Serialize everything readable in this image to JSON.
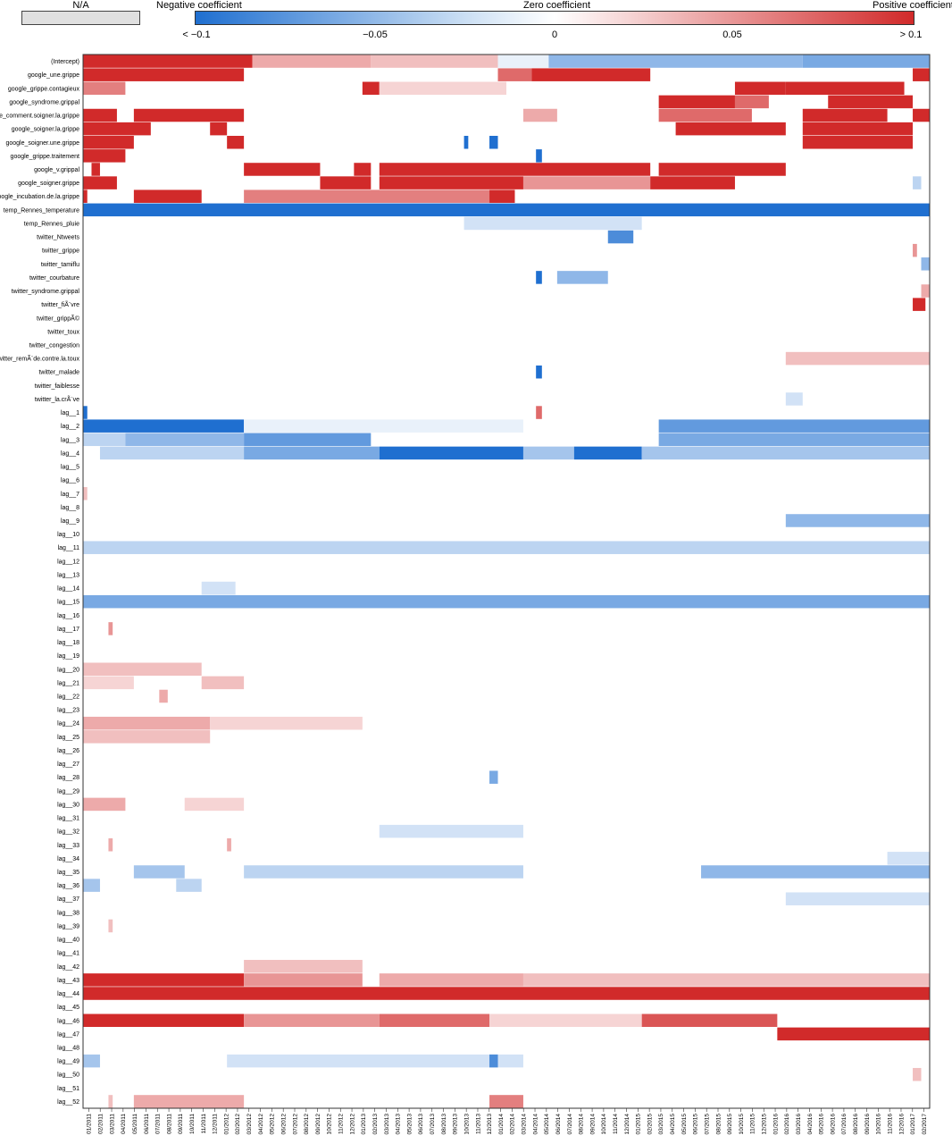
{
  "legend": {
    "na_label": "N/A",
    "negative_label": "Negative coefficient",
    "zero_label": "Zero coefficient",
    "positive_label": "Positive coefficient",
    "ticks": [
      "< −0.1",
      "−0.05",
      "0",
      "0.05",
      "> 0.1"
    ],
    "colors": {
      "negative": "#1f6fd0",
      "zero": "#ffffff",
      "positive": "#d12a2a",
      "na": "#e0e0e0"
    }
  },
  "chart_data": {
    "type": "heatmap",
    "value_range": [
      -0.1,
      0.1
    ],
    "rows": [
      "(Intercept)",
      "google_une.grippe",
      "google_grippe.contagieux",
      "google_syndrome.grippal",
      "google_comment.soigner.la.grippe",
      "google_soigner.la.grippe",
      "google_soigner.une.grippe",
      "google_grippe.traitement",
      "google_v.grippal",
      "google_soigner.grippe",
      "google_incubation.de.la.grippe",
      "temp_Rennes_temperature",
      "temp_Rennes_pluie",
      "twitter_Ntweets",
      "twitter_grippe",
      "twitter_tamiflu",
      "twitter_courbature",
      "twitter_syndrome.grippal",
      "twitter_fiÃ¨vre",
      "twitter_grippÃ©",
      "twitter_toux",
      "twitter_congestion",
      "twitter_remÃ¨de.contre.la.toux",
      "twitter_malade",
      "twitter_faiblesse",
      "twitter_la.crÃ¨ve",
      "lag__1",
      "lag__2",
      "lag__3",
      "lag__4",
      "lag__5",
      "lag__6",
      "lag__7",
      "lag__8",
      "lag__9",
      "lag__10",
      "lag__11",
      "lag__12",
      "lag__13",
      "lag__14",
      "lag__15",
      "lag__16",
      "lag__17",
      "lag__18",
      "lag__19",
      "lag__20",
      "lag__21",
      "lag__22",
      "lag__23",
      "lag__24",
      "lag__25",
      "lag__26",
      "lag__27",
      "lag__28",
      "lag__29",
      "lag__30",
      "lag__31",
      "lag__32",
      "lag__33",
      "lag__34",
      "lag__35",
      "lag__36",
      "lag__37",
      "lag__38",
      "lag__39",
      "lag__40",
      "lag__41",
      "lag__42",
      "lag__43",
      "lag__44",
      "lag__45",
      "lag__46",
      "lag__47",
      "lag__48",
      "lag__49",
      "lag__50",
      "lag__51",
      "lag__52"
    ],
    "x_tick_labels": [
      "01/2011",
      "02/2011",
      "03/2011",
      "04/2011",
      "05/2011",
      "06/2011",
      "07/2011",
      "08/2011",
      "09/2011",
      "10/2011",
      "11/2011",
      "12/2011",
      "01/2012",
      "02/2012",
      "03/2012",
      "04/2012",
      "05/2012",
      "06/2012",
      "07/2012",
      "08/2012",
      "09/2012",
      "10/2012",
      "11/2012",
      "12/2012",
      "01/2013",
      "02/2013",
      "03/2013",
      "04/2013",
      "05/2013",
      "06/2013",
      "07/2013",
      "08/2013",
      "09/2013",
      "10/2013",
      "11/2013",
      "12/2013",
      "01/2014",
      "02/2014",
      "03/2014",
      "04/2014",
      "05/2014",
      "06/2014",
      "07/2014",
      "08/2014",
      "09/2014",
      "10/2014",
      "11/2014",
      "12/2014",
      "01/2015",
      "02/2015",
      "03/2015",
      "04/2015",
      "05/2015",
      "06/2015",
      "07/2015",
      "08/2015",
      "09/2015",
      "10/2015",
      "11/2015",
      "12/2015",
      "01/2016",
      "02/2016",
      "03/2016",
      "04/2016",
      "05/2016",
      "06/2016",
      "07/2016",
      "08/2016",
      "09/2016",
      "10/2016",
      "11/2016",
      "12/2016",
      "01/2017",
      "02/2017"
    ],
    "cells": {
      "(Intercept)": [
        [
          0,
          0.2,
          0.1
        ],
        [
          0.2,
          0.34,
          0.04
        ],
        [
          0.34,
          0.49,
          0.03
        ],
        [
          0.49,
          0.55,
          -0.01
        ],
        [
          0.55,
          0.85,
          -0.05
        ],
        [
          0.85,
          1,
          -0.06
        ]
      ],
      "google_une.grippe": [
        [
          0,
          0.19,
          0.1
        ],
        [
          0.49,
          0.53,
          0.07
        ],
        [
          0.53,
          0.67,
          0.1
        ],
        [
          0.98,
          1,
          0.1
        ]
      ],
      "google_grippe.contagieux": [
        [
          0,
          0.05,
          0.06
        ],
        [
          0.33,
          0.35,
          0.1
        ],
        [
          0.35,
          0.5,
          0.02
        ],
        [
          0.77,
          0.83,
          0.1
        ],
        [
          0.83,
          0.97,
          0.1
        ]
      ],
      "google_syndrome.grippal": [
        [
          0.68,
          0.77,
          0.1
        ],
        [
          0.77,
          0.81,
          0.07
        ],
        [
          0.88,
          0.98,
          0.1
        ]
      ],
      "google_comment.soigner.la.grippe": [
        [
          0,
          0.04,
          0.1
        ],
        [
          0.06,
          0.19,
          0.1
        ],
        [
          0.52,
          0.56,
          0.04
        ],
        [
          0.68,
          0.79,
          0.07
        ],
        [
          0.85,
          0.95,
          0.1
        ],
        [
          0.98,
          1,
          0.1
        ]
      ],
      "google_soigner.la.grippe": [
        [
          0,
          0.08,
          0.1
        ],
        [
          0.15,
          0.17,
          0.1
        ],
        [
          0.7,
          0.83,
          0.1
        ],
        [
          0.85,
          0.98,
          0.1
        ]
      ],
      "google_soigner.une.grippe": [
        [
          0,
          0.06,
          0.1
        ],
        [
          0.17,
          0.19,
          0.1
        ],
        [
          0.45,
          0.455,
          -0.1
        ],
        [
          0.48,
          0.49,
          -0.1
        ],
        [
          0.85,
          0.98,
          0.1
        ]
      ],
      "google_grippe.traitement": [
        [
          0,
          0.05,
          0.1
        ],
        [
          0.535,
          0.542,
          -0.1
        ]
      ],
      "google_v.grippal": [
        [
          0.01,
          0.02,
          0.1
        ],
        [
          0.19,
          0.28,
          0.1
        ],
        [
          0.32,
          0.34,
          0.1
        ],
        [
          0.35,
          0.67,
          0.1
        ],
        [
          0.68,
          0.83,
          0.1
        ]
      ],
      "google_soigner.grippe": [
        [
          0,
          0.04,
          0.1
        ],
        [
          0.28,
          0.34,
          0.1
        ],
        [
          0.35,
          0.52,
          0.1
        ],
        [
          0.52,
          0.67,
          0.05
        ],
        [
          0.67,
          0.77,
          0.1
        ],
        [
          0.98,
          0.99,
          -0.03
        ]
      ],
      "google_incubation.de.la.grippe": [
        [
          0,
          0.005,
          0.1
        ],
        [
          0.06,
          0.14,
          0.1
        ],
        [
          0.19,
          0.48,
          0.06
        ],
        [
          0.48,
          0.51,
          0.1
        ]
      ],
      "temp_Rennes_temperature": [
        [
          0,
          1,
          -0.1
        ]
      ],
      "temp_Rennes_pluie": [
        [
          0.45,
          0.66,
          -0.02
        ]
      ],
      "twitter_Ntweets": [
        [
          0.62,
          0.65,
          -0.08
        ]
      ],
      "twitter_grippe": [
        [
          0.98,
          0.985,
          0.05
        ]
      ],
      "twitter_tamiflu": [
        [
          0.99,
          1,
          -0.05
        ]
      ],
      "twitter_courbature": [
        [
          0.535,
          0.542,
          -0.1
        ],
        [
          0.56,
          0.62,
          -0.05
        ]
      ],
      "twitter_syndrome.grippal": [
        [
          0.99,
          1,
          0.04
        ]
      ],
      "twitter_fiÃ¨vre": [
        [
          0.98,
          0.995,
          0.1
        ]
      ],
      "twitter_grippÃ©": [],
      "twitter_toux": [],
      "twitter_congestion": [],
      "twitter_remÃ¨de.contre.la.toux": [
        [
          0.83,
          1,
          0.03
        ]
      ],
      "twitter_malade": [
        [
          0.535,
          0.542,
          -0.1
        ]
      ],
      "twitter_faiblesse": [],
      "twitter_la.crÃ¨ve": [
        [
          0.83,
          0.85,
          -0.02
        ]
      ],
      "lag__1": [
        [
          0,
          0.005,
          -0.1
        ],
        [
          0.535,
          0.542,
          0.07
        ]
      ],
      "lag__2": [
        [
          0,
          0.19,
          -0.1
        ],
        [
          0.19,
          0.52,
          -0.01
        ],
        [
          0.68,
          1,
          -0.07
        ]
      ],
      "lag__3": [
        [
          0,
          0.05,
          -0.03
        ],
        [
          0.05,
          0.19,
          -0.05
        ],
        [
          0.19,
          0.34,
          -0.07
        ],
        [
          0.68,
          1,
          -0.06
        ]
      ],
      "lag__4": [
        [
          0.02,
          0.19,
          -0.03
        ],
        [
          0.19,
          0.35,
          -0.06
        ],
        [
          0.35,
          0.52,
          -0.1
        ],
        [
          0.52,
          0.58,
          -0.04
        ],
        [
          0.58,
          0.66,
          -0.1
        ],
        [
          0.66,
          1,
          -0.04
        ]
      ],
      "lag__5": [],
      "lag__6": [],
      "lag__7": [
        [
          0,
          0.005,
          0.03
        ]
      ],
      "lag__8": [],
      "lag__9": [
        [
          0.83,
          1,
          -0.05
        ]
      ],
      "lag__10": [],
      "lag__11": [
        [
          0,
          1,
          -0.03
        ]
      ],
      "lag__12": [],
      "lag__13": [],
      "lag__14": [
        [
          0.14,
          0.18,
          -0.02
        ]
      ],
      "lag__15": [
        [
          0,
          1,
          -0.06
        ]
      ],
      "lag__16": [],
      "lag__17": [
        [
          0.03,
          0.035,
          0.05
        ]
      ],
      "lag__18": [],
      "lag__19": [],
      "lag__20": [
        [
          0,
          0.14,
          0.03
        ]
      ],
      "lag__21": [
        [
          0,
          0.06,
          0.02
        ],
        [
          0.14,
          0.19,
          0.03
        ]
      ],
      "lag__22": [
        [
          0.09,
          0.1,
          0.04
        ]
      ],
      "lag__23": [],
      "lag__24": [
        [
          0,
          0.15,
          0.04
        ],
        [
          0.15,
          0.33,
          0.02
        ]
      ],
      "lag__25": [
        [
          0,
          0.15,
          0.03
        ]
      ],
      "lag__26": [],
      "lag__27": [],
      "lag__28": [
        [
          0.48,
          0.49,
          -0.06
        ]
      ],
      "lag__29": [],
      "lag__30": [
        [
          0,
          0.05,
          0.04
        ],
        [
          0.12,
          0.19,
          0.02
        ]
      ],
      "lag__31": [],
      "lag__32": [
        [
          0.35,
          0.52,
          -0.02
        ]
      ],
      "lag__33": [
        [
          0.03,
          0.035,
          0.04
        ],
        [
          0.17,
          0.175,
          0.04
        ]
      ],
      "lag__34": [
        [
          0.95,
          1,
          -0.02
        ]
      ],
      "lag__35": [
        [
          0.06,
          0.12,
          -0.04
        ],
        [
          0.19,
          0.52,
          -0.03
        ],
        [
          0.73,
          1,
          -0.05
        ]
      ],
      "lag__36": [
        [
          0,
          0.02,
          -0.04
        ],
        [
          0.11,
          0.14,
          -0.03
        ]
      ],
      "lag__37": [
        [
          0.83,
          1,
          -0.02
        ]
      ],
      "lag__38": [],
      "lag__39": [
        [
          0.03,
          0.035,
          0.03
        ]
      ],
      "lag__40": [],
      "lag__41": [],
      "lag__42": [
        [
          0.19,
          0.33,
          0.03
        ]
      ],
      "lag__43": [
        [
          0,
          0.19,
          0.1
        ],
        [
          0.19,
          0.33,
          0.05
        ],
        [
          0.35,
          0.52,
          0.04
        ],
        [
          0.52,
          1,
          0.03
        ]
      ],
      "lag__44": [
        [
          0,
          1,
          0.1
        ]
      ],
      "lag__45": [],
      "lag__46": [
        [
          0,
          0.19,
          0.1
        ],
        [
          0.19,
          0.35,
          0.05
        ],
        [
          0.35,
          0.48,
          0.07
        ],
        [
          0.48,
          0.66,
          0.02
        ],
        [
          0.66,
          0.82,
          0.08
        ]
      ],
      "lag__47": [
        [
          0.82,
          1,
          0.1
        ]
      ],
      "lag__48": [],
      "lag__49": [
        [
          0,
          0.02,
          -0.04
        ],
        [
          0.17,
          0.52,
          -0.02
        ],
        [
          0.48,
          0.49,
          -0.08
        ]
      ],
      "lag__50": [
        [
          0.98,
          0.99,
          0.03
        ]
      ],
      "lag__51": [],
      "lag__52": [
        [
          0.03,
          0.035,
          0.03
        ],
        [
          0.06,
          0.19,
          0.04
        ],
        [
          0.48,
          0.52,
          0.06
        ]
      ]
    }
  }
}
